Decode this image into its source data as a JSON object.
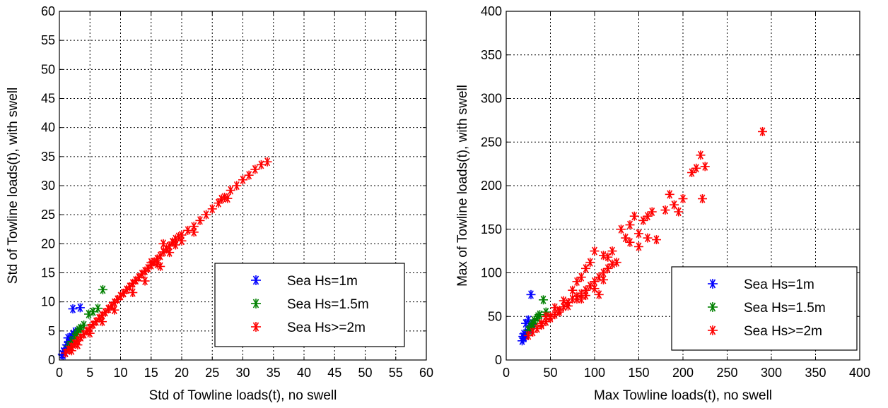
{
  "chart_data": [
    {
      "type": "scatter",
      "xlabel": "Std of Towline loads(t), no swell",
      "ylabel": "Std of Towline loads(t), with swell",
      "xlim": [
        0,
        60
      ],
      "ylim": [
        0,
        60
      ],
      "xticks": [
        "0",
        "5",
        "10",
        "15",
        "20",
        "25",
        "30",
        "35",
        "40",
        "45",
        "50",
        "55",
        "60"
      ],
      "yticks": [
        "0",
        "5",
        "10",
        "15",
        "20",
        "25",
        "30",
        "35",
        "40",
        "45",
        "50",
        "55",
        "60"
      ],
      "grid": true,
      "legend_position": "bottom-right",
      "marker": "*",
      "series": [
        {
          "name": "Sea Hs=1m",
          "color": "#0000ff",
          "points": [
            [
              0.5,
              1.0
            ],
            [
              0.7,
              1.5
            ],
            [
              1.0,
              2.0
            ],
            [
              1.2,
              2.6
            ],
            [
              1.5,
              3.0
            ],
            [
              1.8,
              3.5
            ],
            [
              2.0,
              4.0
            ],
            [
              2.3,
              4.5
            ],
            [
              2.6,
              4.9
            ],
            [
              1.0,
              1.2
            ],
            [
              1.6,
              2.2
            ],
            [
              0.6,
              0.8
            ],
            [
              2.2,
              8.8
            ],
            [
              3.4,
              9.0
            ],
            [
              1.4,
              3.8
            ]
          ]
        },
        {
          "name": "Sea Hs=1.5m",
          "color": "#008000",
          "points": [
            [
              1.5,
              2.4
            ],
            [
              2.0,
              3.2
            ],
            [
              2.5,
              4.0
            ],
            [
              3.0,
              4.8
            ],
            [
              3.5,
              5.5
            ],
            [
              4.0,
              6.0
            ],
            [
              4.8,
              7.9
            ],
            [
              5.5,
              8.3
            ],
            [
              7.1,
              12.1
            ],
            [
              6.3,
              8.9
            ],
            [
              3.2,
              5.2
            ],
            [
              2.8,
              4.4
            ]
          ]
        },
        {
          "name": "Sea Hs>=2m",
          "color": "#ff0000",
          "points": [
            [
              1.0,
              1.2
            ],
            [
              1.5,
              1.8
            ],
            [
              2.0,
              2.3
            ],
            [
              2.5,
              2.8
            ],
            [
              3.0,
              3.4
            ],
            [
              3.5,
              3.9
            ],
            [
              4.0,
              4.4
            ],
            [
              4.5,
              5.0
            ],
            [
              5.0,
              5.5
            ],
            [
              5.5,
              6.1
            ],
            [
              6.0,
              6.6
            ],
            [
              6.5,
              7.2
            ],
            [
              7.0,
              7.7
            ],
            [
              7.5,
              8.2
            ],
            [
              8.0,
              8.8
            ],
            [
              8.5,
              9.3
            ],
            [
              9.0,
              9.9
            ],
            [
              9.5,
              10.4
            ],
            [
              10.0,
              11.0
            ],
            [
              10.5,
              11.5
            ],
            [
              11.0,
              12.1
            ],
            [
              11.5,
              12.6
            ],
            [
              12.0,
              13.2
            ],
            [
              12.5,
              13.7
            ],
            [
              13.0,
              14.2
            ],
            [
              13.5,
              14.8
            ],
            [
              14.0,
              15.3
            ],
            [
              14.5,
              15.8
            ],
            [
              15.0,
              16.3
            ],
            [
              15.5,
              16.9
            ],
            [
              16.0,
              17.4
            ],
            [
              16.5,
              17.9
            ],
            [
              17.0,
              18.6
            ],
            [
              17.5,
              19.1
            ],
            [
              18.0,
              19.6
            ],
            [
              18.5,
              20.3
            ],
            [
              19.0,
              20.8
            ],
            [
              19.5,
              21.2
            ],
            [
              20.0,
              21.5
            ],
            [
              21.0,
              22.3
            ],
            [
              22.0,
              23.0
            ],
            [
              23.0,
              24.0
            ],
            [
              24.0,
              25.0
            ],
            [
              25.0,
              26.0
            ],
            [
              26.0,
              27.0
            ],
            [
              27.0,
              28.0
            ],
            [
              28.0,
              29.2
            ],
            [
              29.0,
              30.0
            ],
            [
              30.0,
              31.0
            ],
            [
              31.0,
              31.8
            ],
            [
              32.0,
              32.8
            ],
            [
              33.0,
              33.6
            ],
            [
              34.0,
              34.1
            ],
            [
              19.0,
              19.8
            ],
            [
              20.0,
              20.5
            ],
            [
              16.0,
              16.5
            ],
            [
              18.0,
              18.5
            ],
            [
              3.0,
              2.6
            ],
            [
              2.0,
              1.6
            ],
            [
              5.0,
              4.6
            ],
            [
              7.0,
              6.6
            ],
            [
              9.0,
              8.6
            ],
            [
              12.0,
              11.6
            ],
            [
              14.0,
              13.6
            ],
            [
              16.5,
              16.1
            ],
            [
              15.0,
              16.8
            ],
            [
              17.0,
              20.0
            ],
            [
              22.0,
              22.0
            ],
            [
              26.5,
              27.7
            ],
            [
              27.5,
              27.8
            ]
          ]
        }
      ]
    },
    {
      "type": "scatter",
      "xlabel": "Max Towline loads(t), no swell",
      "ylabel": "Max of Towline loads(t), with swell",
      "xlim": [
        0,
        400
      ],
      "ylim": [
        0,
        400
      ],
      "xticks": [
        "0",
        "50",
        "100",
        "150",
        "200",
        "250",
        "300",
        "350",
        "400"
      ],
      "yticks": [
        "0",
        "50",
        "100",
        "150",
        "200",
        "250",
        "300",
        "350",
        "400"
      ],
      "grid": true,
      "legend_position": "bottom-right",
      "marker": "*",
      "series": [
        {
          "name": "Sea Hs=1m",
          "color": "#0000ff",
          "points": [
            [
              18,
              22
            ],
            [
              20,
              25
            ],
            [
              22,
              28
            ],
            [
              24,
              32
            ],
            [
              26,
              35
            ],
            [
              28,
              38
            ],
            [
              30,
              41
            ],
            [
              22,
              42
            ],
            [
              25,
              46
            ],
            [
              28,
              75
            ],
            [
              20,
              30
            ],
            [
              19,
              27
            ]
          ]
        },
        {
          "name": "Sea Hs=1.5m",
          "color": "#008000",
          "points": [
            [
              25,
              34
            ],
            [
              28,
              38
            ],
            [
              30,
              42
            ],
            [
              32,
              45
            ],
            [
              35,
              48
            ],
            [
              38,
              52
            ],
            [
              42,
              69
            ],
            [
              45,
              55
            ],
            [
              36,
              50
            ],
            [
              29,
              40
            ]
          ]
        },
        {
          "name": "Sea Hs>=2m",
          "color": "#ff0000",
          "points": [
            [
              25,
              28
            ],
            [
              30,
              32
            ],
            [
              35,
              36
            ],
            [
              40,
              40
            ],
            [
              45,
              44
            ],
            [
              50,
              48
            ],
            [
              55,
              52
            ],
            [
              60,
              57
            ],
            [
              65,
              61
            ],
            [
              70,
              66
            ],
            [
              75,
              70
            ],
            [
              80,
              73
            ],
            [
              85,
              76
            ],
            [
              90,
              80
            ],
            [
              95,
              85
            ],
            [
              100,
              90
            ],
            [
              105,
              95
            ],
            [
              110,
              100
            ],
            [
              115,
              105
            ],
            [
              120,
              110
            ],
            [
              40,
              42
            ],
            [
              50,
              50
            ],
            [
              60,
              55
            ],
            [
              70,
              62
            ],
            [
              80,
              70
            ],
            [
              90,
              74
            ],
            [
              100,
              82
            ],
            [
              110,
              92
            ],
            [
              125,
              112
            ],
            [
              130,
              150
            ],
            [
              135,
              140
            ],
            [
              140,
              135
            ],
            [
              145,
              165
            ],
            [
              150,
              145
            ],
            [
              155,
              160
            ],
            [
              160,
              165
            ],
            [
              165,
              170
            ],
            [
              170,
              138
            ],
            [
              180,
              172
            ],
            [
              185,
              190
            ],
            [
              190,
              178
            ],
            [
              195,
              170
            ],
            [
              200,
              185
            ],
            [
              210,
              215
            ],
            [
              215,
              220
            ],
            [
              220,
              235
            ],
            [
              222,
              185
            ],
            [
              225,
              222
            ],
            [
              290,
              262
            ],
            [
              100,
              125
            ],
            [
              110,
              120
            ],
            [
              120,
              125
            ],
            [
              85,
              95
            ],
            [
              90,
              105
            ],
            [
              95,
              112
            ],
            [
              75,
              80
            ],
            [
              80,
              90
            ],
            [
              105,
              75
            ],
            [
              115,
              118
            ],
            [
              65,
              68
            ],
            [
              55,
              60
            ],
            [
              45,
              50
            ],
            [
              140,
              155
            ],
            [
              150,
              130
            ],
            [
              160,
              140
            ],
            [
              85,
              70
            ]
          ]
        }
      ]
    }
  ]
}
